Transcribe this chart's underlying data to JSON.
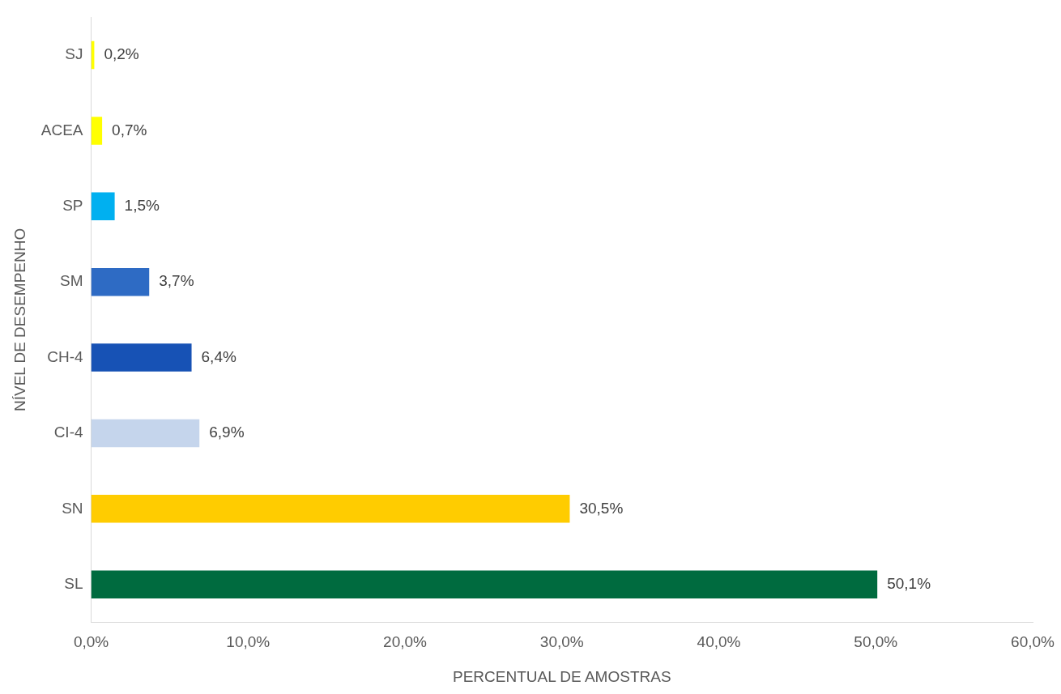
{
  "chart_data": {
    "type": "bar",
    "orientation": "horizontal",
    "xlabel": "PERCENTUAL DE AMOSTRAS",
    "ylabel": "NÍVEL DE DESEMPENHO",
    "categories": [
      "SJ",
      "ACEA",
      "SP",
      "SM",
      "CH-4",
      "CI-4",
      "SN",
      "SL"
    ],
    "values": [
      0.2,
      0.7,
      1.5,
      3.7,
      6.4,
      6.9,
      30.5,
      50.1
    ],
    "colors": [
      "#ffff00",
      "#ffff00",
      "#00b0f0",
      "#2e6bc4",
      "#1752b5",
      "#c5d5ec",
      "#ffcc00",
      "#006b3f"
    ],
    "value_labels": [
      "0,2%",
      "0,7%",
      "1,5%",
      "3,7%",
      "6,4%",
      "6,9%",
      "30,5%",
      "50,1%"
    ],
    "xlim": [
      0,
      60
    ],
    "xticks": [
      {
        "value": 0,
        "label": "0,0%"
      },
      {
        "value": 10,
        "label": "10,0%"
      },
      {
        "value": 20,
        "label": "20,0%"
      },
      {
        "value": 30,
        "label": "30,0%"
      },
      {
        "value": 40,
        "label": "40,0%"
      },
      {
        "value": 50,
        "label": "50,0%"
      },
      {
        "value": 60,
        "label": "60,0%"
      }
    ],
    "grid": false,
    "legend": false
  }
}
